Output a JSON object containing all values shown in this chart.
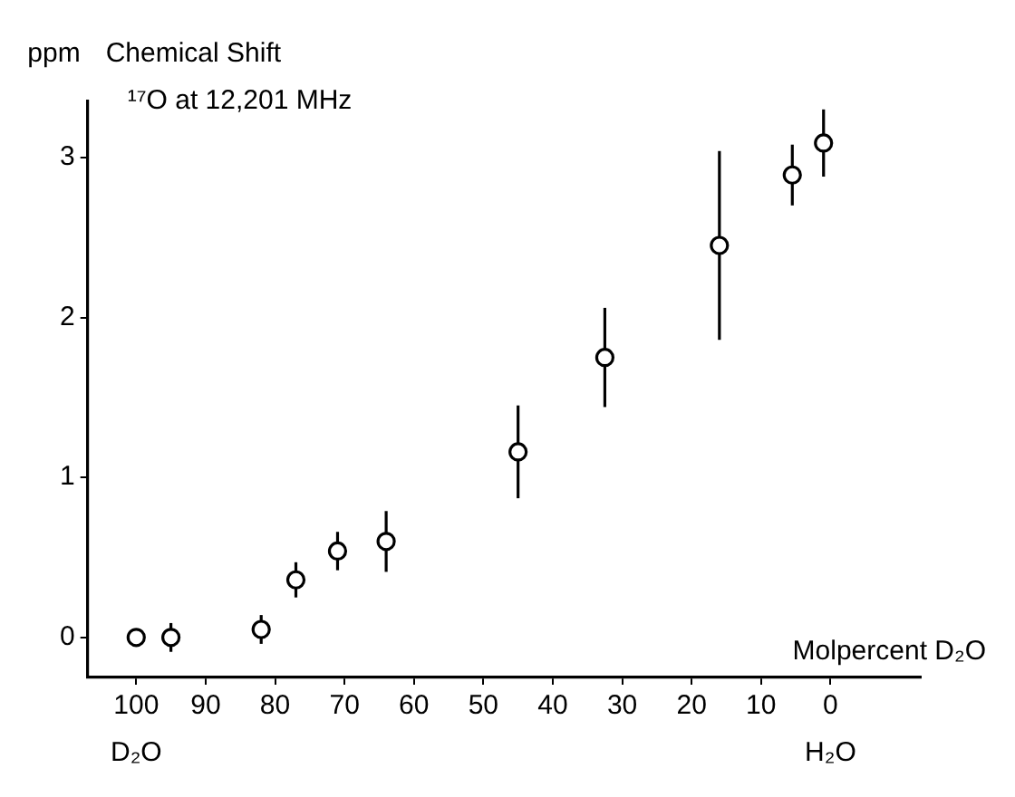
{
  "chart_data": {
    "type": "scatter",
    "title": "Chemical Shift",
    "subtitle": "¹⁷O at 12,201 MHz",
    "ylabel": "ppm",
    "xlabel": "Molpercent D₂O",
    "x": [
      100,
      95,
      82,
      77,
      71,
      64,
      45,
      32.5,
      16,
      5.5,
      1
    ],
    "series": [
      {
        "color": "#000000",
        "values": [
          0,
          0,
          0.05,
          0.36,
          0.54,
          0.6,
          1.16,
          1.75,
          2.45,
          2.89,
          3.09
        ],
        "errors": [
          null,
          0.09,
          0.09,
          0.11,
          0.12,
          0.19,
          0.29,
          0.31,
          0.59,
          0.19,
          0.21
        ]
      }
    ],
    "xlim": [
      107,
      -13
    ],
    "xticks": [
      100,
      90,
      80,
      70,
      60,
      50,
      40,
      30,
      20,
      10,
      0
    ],
    "ylim": [
      -0.25,
      3.35
    ],
    "yticks": [
      0,
      1,
      2,
      3
    ],
    "marker": "circle",
    "grid": false,
    "legend": false,
    "annotations": [
      "D₂O",
      "H₂O"
    ]
  }
}
